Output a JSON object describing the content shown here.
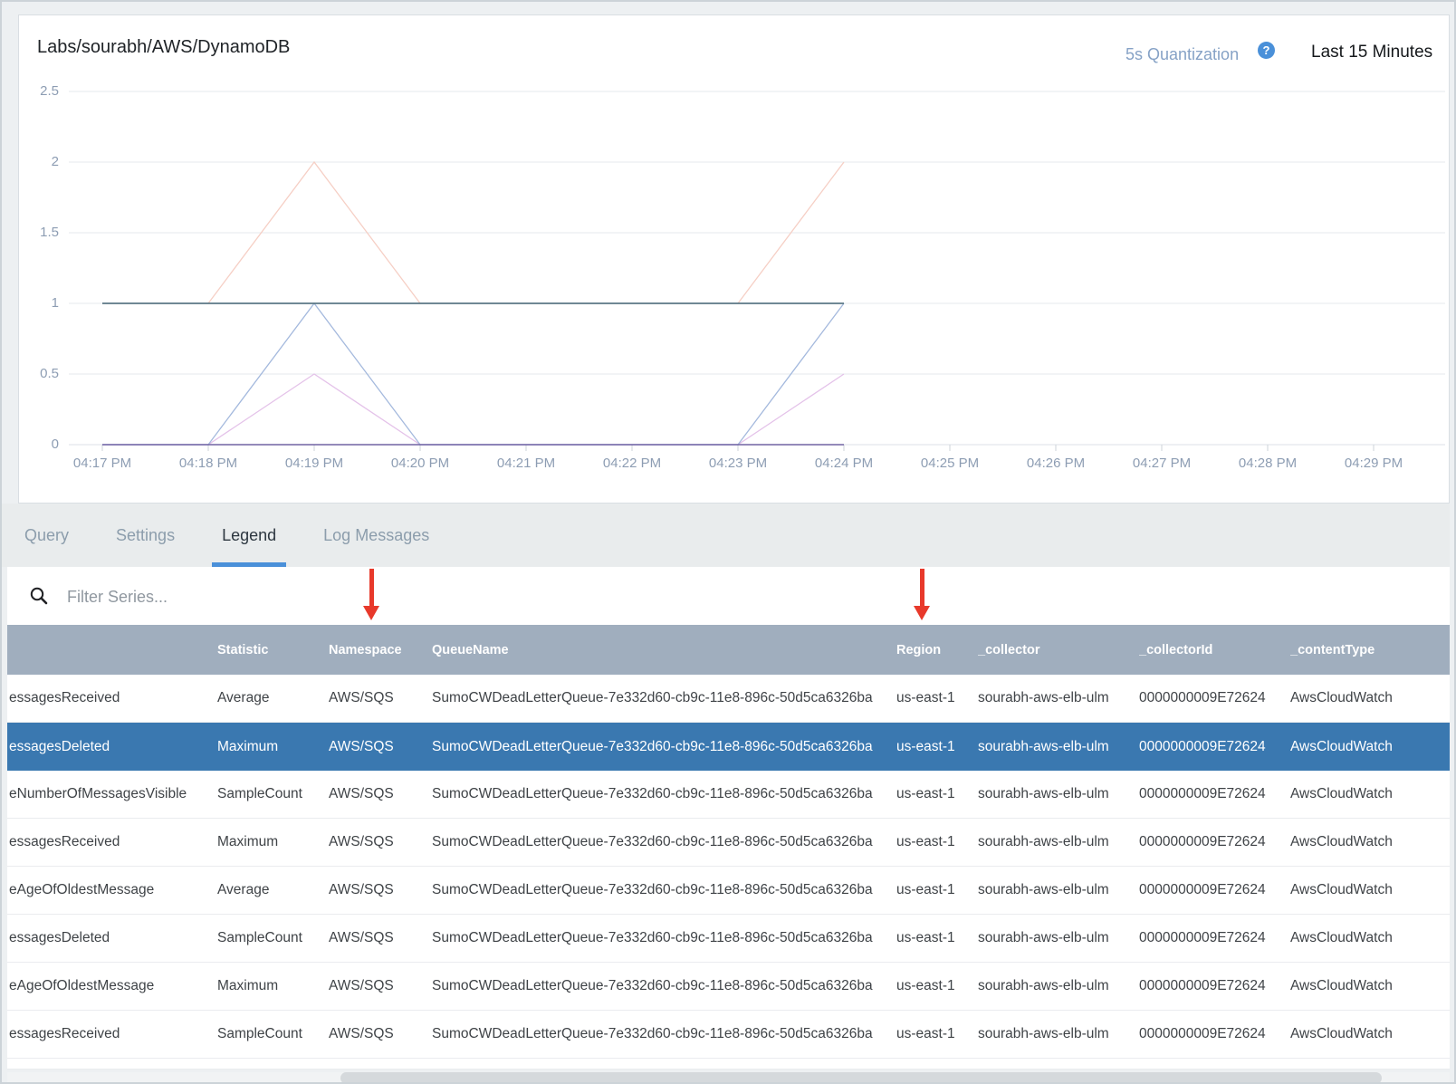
{
  "header": {
    "title": "Labs/sourabh/AWS/DynamoDB",
    "quantization_label": "5s Quantization",
    "help_icon": "?",
    "time_range": "Last 15 Minutes"
  },
  "chart_data": {
    "type": "line",
    "title": "Labs/sourabh/AWS/DynamoDB",
    "x_ticks": [
      "04:17 PM",
      "04:18 PM",
      "04:19 PM",
      "04:20 PM",
      "04:21 PM",
      "04:22 PM",
      "04:23 PM",
      "04:24 PM",
      "04:25 PM",
      "04:26 PM",
      "04:27 PM",
      "04:28 PM",
      "04:29 PM"
    ],
    "y_ticks": [
      0,
      0.5,
      1,
      1.5,
      2,
      2.5
    ],
    "ylim": [
      0,
      2.5
    ],
    "grid": true,
    "legend_position": "table-below",
    "data_time_span": [
      "04:17 PM",
      "04:24 PM"
    ],
    "series": [
      {
        "name": "light-salmon-line",
        "color": "#f6cfc5",
        "width": 1.3,
        "values": [
          1,
          1,
          2,
          1,
          1,
          1,
          1,
          2
        ]
      },
      {
        "name": "light-violet-line",
        "color": "#e4c2e9",
        "width": 1.3,
        "values": [
          0,
          0,
          0.5,
          0,
          0,
          0,
          0,
          0.5
        ]
      },
      {
        "name": "light-blue-line",
        "color": "#a4b9dd",
        "width": 1.3,
        "values": [
          0,
          0,
          1,
          0,
          0,
          0,
          0,
          1
        ]
      },
      {
        "name": "dark-purple-line",
        "color": "#7164a4",
        "width": 1.5,
        "values": [
          0,
          0,
          0,
          0,
          0,
          0,
          0,
          0
        ]
      },
      {
        "name": "dark-slate-line",
        "color": "#5b7886",
        "width": 1.8,
        "values": [
          1,
          1,
          1,
          1,
          1,
          1,
          1,
          1
        ]
      }
    ]
  },
  "tabs": {
    "items": [
      {
        "label": "Query",
        "active": false
      },
      {
        "label": "Settings",
        "active": false
      },
      {
        "label": "Legend",
        "active": true
      },
      {
        "label": "Log Messages",
        "active": false
      }
    ]
  },
  "filter": {
    "placeholder": "Filter Series...",
    "search_icon": "magnifier"
  },
  "table": {
    "headers": [
      "",
      "Statistic",
      "Namespace",
      "QueueName",
      "Region",
      "_collector",
      "_collectorId",
      "_contentType"
    ],
    "selected_row_index": 1,
    "rows": [
      {
        "series": "essagesReceived",
        "statistic": "Average",
        "namespace": "AWS/SQS",
        "queue_name": "SumoCWDeadLetterQueue-7e332d60-cb9c-11e8-896c-50d5ca6326ba",
        "region": "us-east-1",
        "collector": "sourabh-aws-elb-ulm",
        "collector_id": "0000000009E72624",
        "content_type": "AwsCloudWatch",
        "selected": false
      },
      {
        "series": "essagesDeleted",
        "statistic": "Maximum",
        "namespace": "AWS/SQS",
        "queue_name": "SumoCWDeadLetterQueue-7e332d60-cb9c-11e8-896c-50d5ca6326ba",
        "region": "us-east-1",
        "collector": "sourabh-aws-elb-ulm",
        "collector_id": "0000000009E72624",
        "content_type": "AwsCloudWatch",
        "selected": true
      },
      {
        "series": "eNumberOfMessagesVisible",
        "statistic": "SampleCount",
        "namespace": "AWS/SQS",
        "queue_name": "SumoCWDeadLetterQueue-7e332d60-cb9c-11e8-896c-50d5ca6326ba",
        "region": "us-east-1",
        "collector": "sourabh-aws-elb-ulm",
        "collector_id": "0000000009E72624",
        "content_type": "AwsCloudWatch",
        "selected": false
      },
      {
        "series": "essagesReceived",
        "statistic": "Maximum",
        "namespace": "AWS/SQS",
        "queue_name": "SumoCWDeadLetterQueue-7e332d60-cb9c-11e8-896c-50d5ca6326ba",
        "region": "us-east-1",
        "collector": "sourabh-aws-elb-ulm",
        "collector_id": "0000000009E72624",
        "content_type": "AwsCloudWatch",
        "selected": false
      },
      {
        "series": "eAgeOfOldestMessage",
        "statistic": "Average",
        "namespace": "AWS/SQS",
        "queue_name": "SumoCWDeadLetterQueue-7e332d60-cb9c-11e8-896c-50d5ca6326ba",
        "region": "us-east-1",
        "collector": "sourabh-aws-elb-ulm",
        "collector_id": "0000000009E72624",
        "content_type": "AwsCloudWatch",
        "selected": false
      },
      {
        "series": "essagesDeleted",
        "statistic": "SampleCount",
        "namespace": "AWS/SQS",
        "queue_name": "SumoCWDeadLetterQueue-7e332d60-cb9c-11e8-896c-50d5ca6326ba",
        "region": "us-east-1",
        "collector": "sourabh-aws-elb-ulm",
        "collector_id": "0000000009E72624",
        "content_type": "AwsCloudWatch",
        "selected": false
      },
      {
        "series": "eAgeOfOldestMessage",
        "statistic": "Maximum",
        "namespace": "AWS/SQS",
        "queue_name": "SumoCWDeadLetterQueue-7e332d60-cb9c-11e8-896c-50d5ca6326ba",
        "region": "us-east-1",
        "collector": "sourabh-aws-elb-ulm",
        "collector_id": "0000000009E72624",
        "content_type": "AwsCloudWatch",
        "selected": false
      },
      {
        "series": "essagesReceived",
        "statistic": "SampleCount",
        "namespace": "AWS/SQS",
        "queue_name": "SumoCWDeadLetterQueue-7e332d60-cb9c-11e8-896c-50d5ca6326ba",
        "region": "us-east-1",
        "collector": "sourabh-aws-elb-ulm",
        "collector_id": "0000000009E72624",
        "content_type": "AwsCloudWatch",
        "selected": false
      }
    ]
  },
  "annotations": {
    "arrow_color": "#e8392b",
    "arrows": [
      {
        "points_at": "Namespace",
        "x": 410
      },
      {
        "points_at": "Region",
        "x": 1018
      }
    ]
  },
  "colors": {
    "accent_blue": "#4a90d9",
    "header_row_bg": "#a0aebe",
    "selected_row_bg": "#3a78b0",
    "tab_bar_bg": "#e9eced",
    "frame_bg": "#edf0f2",
    "arrow_red": "#e8392b"
  }
}
